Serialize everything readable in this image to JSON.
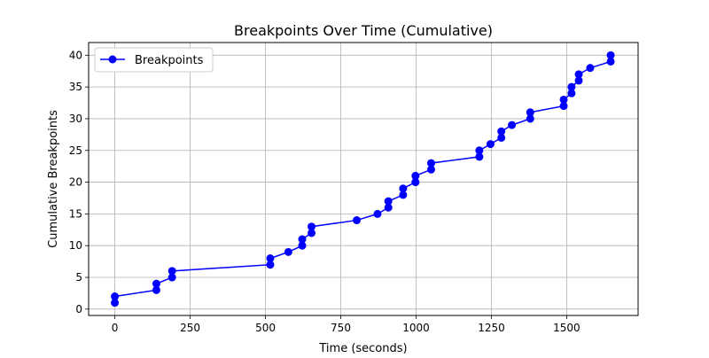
{
  "chart_data": {
    "type": "line",
    "title": "Breakpoints Over Time (Cumulative)",
    "xlabel": "Time (seconds)",
    "ylabel": "Cumulative Breakpoints",
    "xlim": [
      -87,
      1737
    ],
    "ylim": [
      -1,
      42
    ],
    "xticks": [
      0,
      250,
      500,
      750,
      1000,
      1250,
      1500
    ],
    "yticks": [
      0,
      5,
      10,
      15,
      20,
      25,
      30,
      35,
      40
    ],
    "grid": true,
    "legend": "upper-left",
    "series": [
      {
        "name": "Breakpoints",
        "color": "#0000ff",
        "marker": "circle",
        "x": [
          0,
          0,
          138,
          138,
          190,
          190,
          516,
          516,
          576,
          622,
          622,
          653,
          653,
          803,
          872,
          908,
          908,
          957,
          957,
          998,
          998,
          1050,
          1050,
          1210,
          1210,
          1247,
          1283,
          1283,
          1318,
          1379,
          1379,
          1490,
          1490,
          1516,
          1516,
          1540,
          1540,
          1578,
          1646,
          1646
        ],
        "y": [
          1,
          2,
          3,
          4,
          5,
          6,
          7,
          8,
          9,
          10,
          11,
          12,
          13,
          14,
          15,
          16,
          17,
          18,
          19,
          20,
          21,
          22,
          23,
          24,
          25,
          26,
          27,
          28,
          29,
          30,
          31,
          32,
          33,
          34,
          35,
          36,
          37,
          38,
          39,
          40
        ]
      }
    ]
  }
}
